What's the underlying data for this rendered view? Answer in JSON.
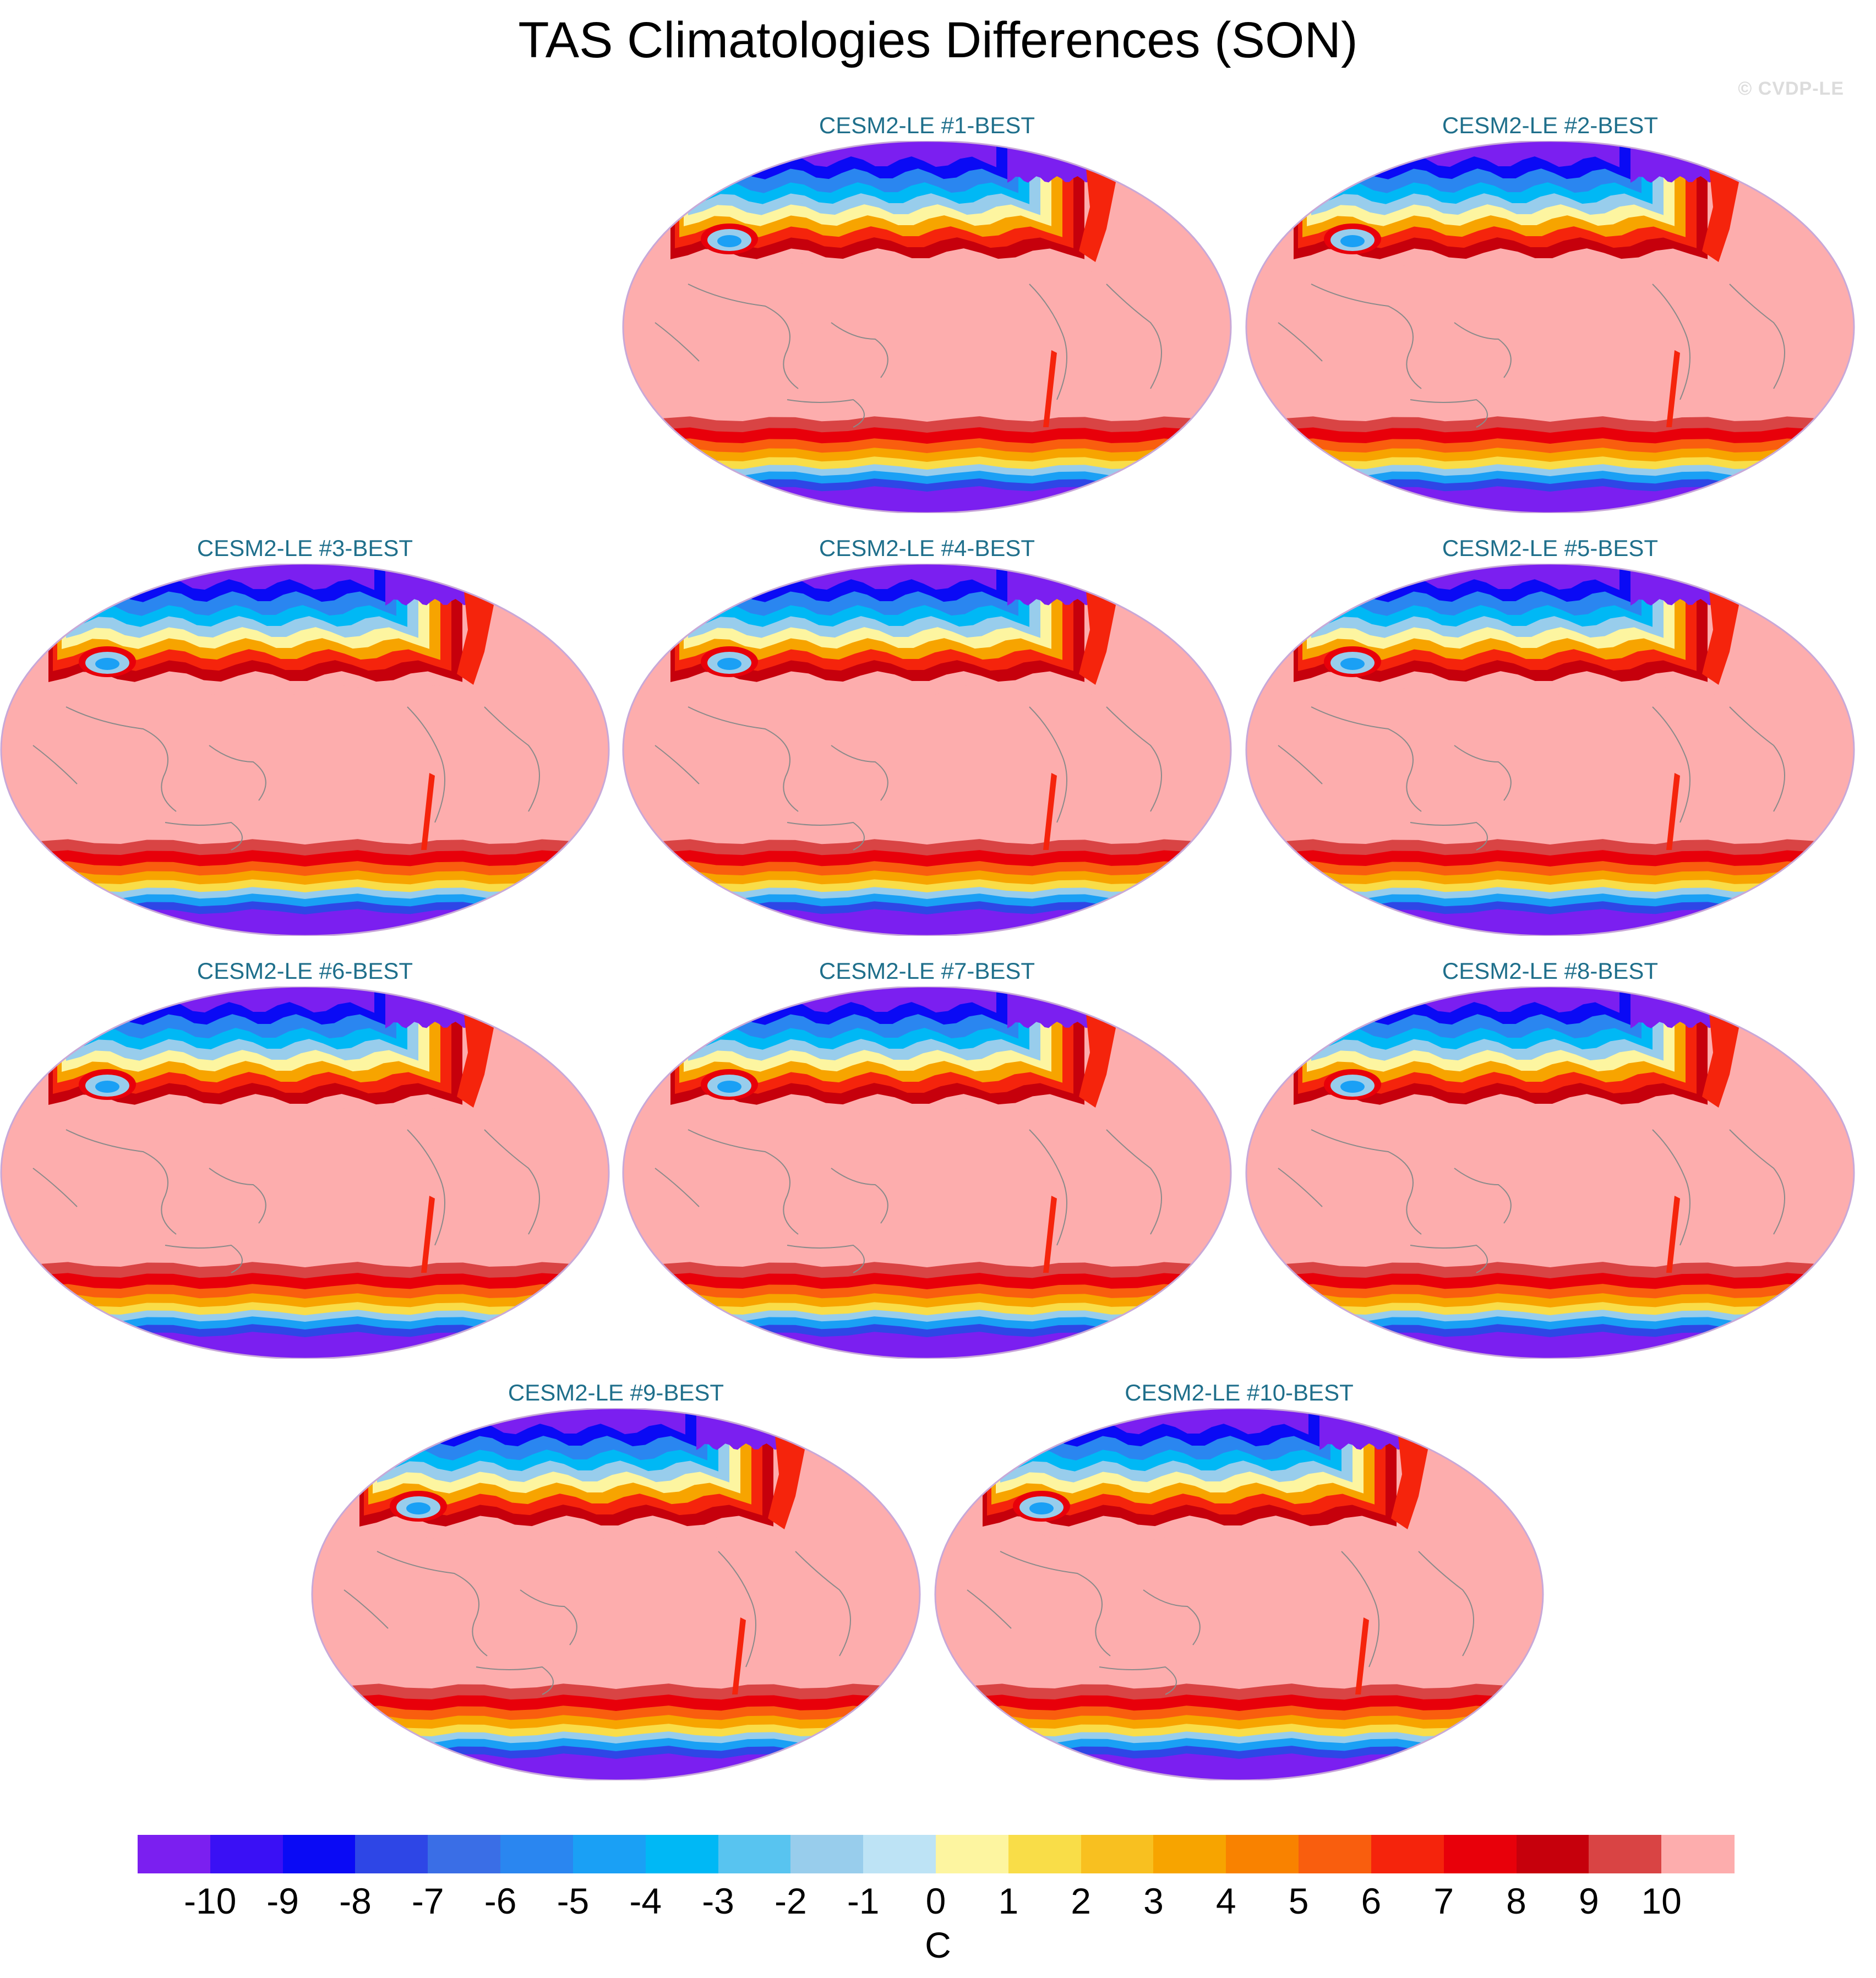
{
  "title": "TAS Climatologies Differences (SON)",
  "watermark": "© CVDP-LE",
  "panels": [
    {
      "title": "CESM2-LE #1-BEST"
    },
    {
      "title": "CESM2-LE #2-BEST"
    },
    {
      "title": "CESM2-LE #3-BEST"
    },
    {
      "title": "CESM2-LE #4-BEST"
    },
    {
      "title": "CESM2-LE #5-BEST"
    },
    {
      "title": "CESM2-LE #6-BEST"
    },
    {
      "title": "CESM2-LE #7-BEST"
    },
    {
      "title": "CESM2-LE #8-BEST"
    },
    {
      "title": "CESM2-LE #9-BEST"
    },
    {
      "title": "CESM2-LE #10-BEST"
    }
  ],
  "colorbar": {
    "unit": "C",
    "ticks": [
      "-10",
      "-9",
      "-8",
      "-7",
      "-6",
      "-5",
      "-4",
      "-3",
      "-2",
      "-1",
      "0",
      "1",
      "2",
      "3",
      "4",
      "5",
      "6",
      "7",
      "8",
      "9",
      "10"
    ],
    "colors": [
      "#7b1ff0",
      "#3a10f5",
      "#0a0af5",
      "#2e46e6",
      "#3a6ee6",
      "#2a86f0",
      "#1aa0f5",
      "#00b8f5",
      "#58c4f0",
      "#98cdec",
      "#bde3f5",
      "#fdf5a0",
      "#f9dd48",
      "#f8c020",
      "#f7a400",
      "#f98200",
      "#f95e0e",
      "#f5240c",
      "#e8000a",
      "#c6000c",
      "#d94444",
      "#fdadad"
    ]
  },
  "map_colors": {
    "land_ocean_fill": "#fdadad",
    "polar_cold": "#7b1ff0",
    "coast": "#8a8a8a",
    "border": "#c8a8d8"
  }
}
